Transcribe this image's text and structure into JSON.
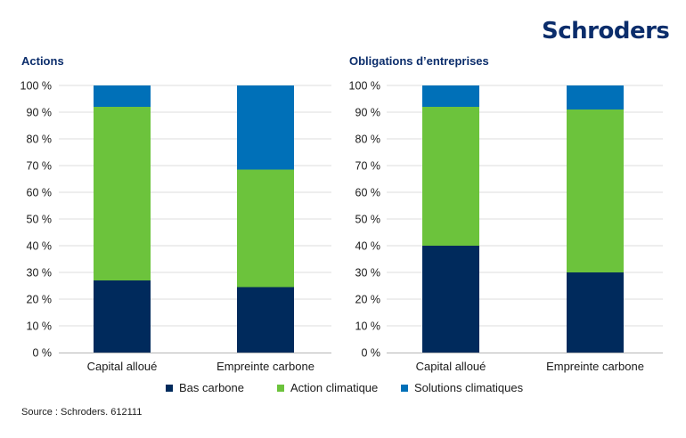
{
  "brand": {
    "logo_text": "Schroders"
  },
  "colors": {
    "bas_carbone": "#002a5c",
    "action_climatique": "#6cc33c",
    "solutions_climatiques": "#0070b8",
    "gridline": "#dddddd"
  },
  "legend": [
    "Bas carbone",
    "Action climatique",
    "Solutions climatiques"
  ],
  "source": "Source : Schroders. 612111",
  "chart_data": [
    {
      "type": "bar",
      "stacked": true,
      "title": "Actions",
      "categories": [
        "Capital alloué",
        "Empreinte carbone"
      ],
      "series": [
        {
          "name": "Bas carbone",
          "values": [
            27,
            24.5
          ]
        },
        {
          "name": "Action climatique",
          "values": [
            65,
            44
          ]
        },
        {
          "name": "Solutions climatiques",
          "values": [
            8,
            31.5
          ]
        }
      ],
      "ylim": [
        0,
        100
      ],
      "yticks": [
        "0 %",
        "10 %",
        "20 %",
        "30 %",
        "40 %",
        "50 %",
        "60 %",
        "70 %",
        "80 %",
        "90 %",
        "100 %"
      ],
      "grid": true
    },
    {
      "type": "bar",
      "stacked": true,
      "title": "Obligations d’entreprises",
      "categories": [
        "Capital alloué",
        "Empreinte carbone"
      ],
      "series": [
        {
          "name": "Bas carbone",
          "values": [
            40,
            30
          ]
        },
        {
          "name": "Action climatique",
          "values": [
            52,
            61
          ]
        },
        {
          "name": "Solutions climatiques",
          "values": [
            8,
            9
          ]
        }
      ],
      "ylim": [
        0,
        100
      ],
      "yticks": [
        "0 %",
        "10 %",
        "20 %",
        "30 %",
        "40 %",
        "50 %",
        "60 %",
        "70 %",
        "80 %",
        "90 %",
        "100 %"
      ],
      "grid": true
    }
  ]
}
